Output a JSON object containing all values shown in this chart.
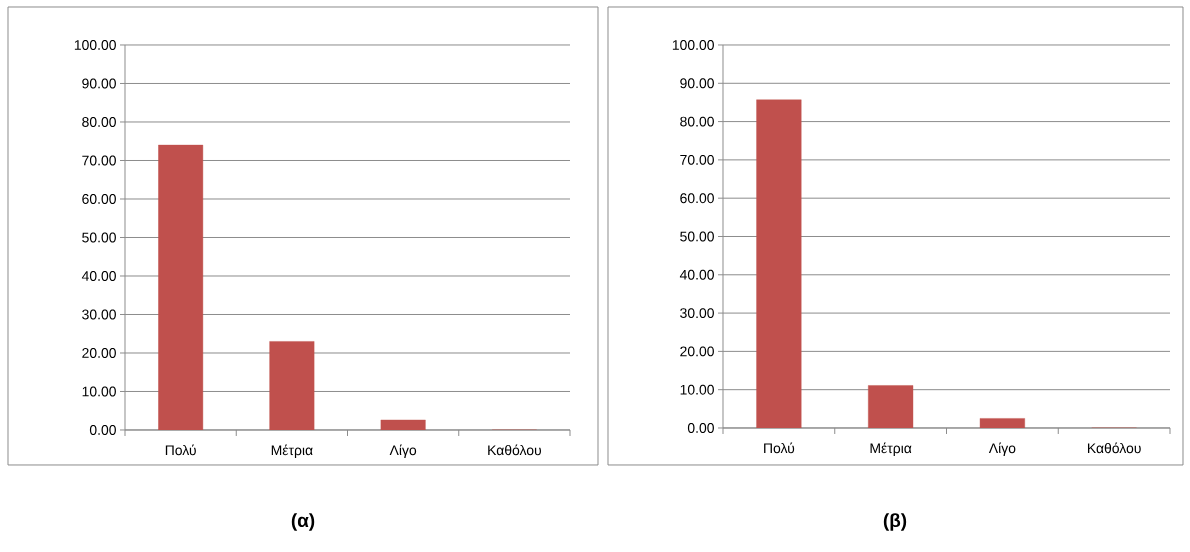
{
  "chart_data": [
    {
      "type": "bar",
      "title": "**(α)**",
      "categories": [
        "Πολύ",
        "Μέτρια",
        "Λίγο",
        "Καθόλου"
      ],
      "values": [
        74.0,
        23.0,
        2.6,
        0
      ],
      "color": "#c0504d",
      "ylim": [
        0,
        100
      ],
      "yticks": [
        {
          "value": 0,
          "label": "0.00"
        },
        {
          "value": 10,
          "label": "10.00"
        },
        {
          "value": 20,
          "label": "20.00"
        },
        {
          "value": 30,
          "label": "30.00"
        },
        {
          "value": 40,
          "label": "40.00"
        },
        {
          "value": 50,
          "label": "50.00"
        },
        {
          "value": 60,
          "label": "60.00"
        },
        {
          "value": 70,
          "label": "70.00"
        },
        {
          "value": 80,
          "label": "80.00"
        },
        {
          "value": 90,
          "label": "90.00"
        },
        {
          "value": 100,
          "label": "100.00"
        }
      ],
      "grid": "y"
    },
    {
      "type": "bar",
      "title": "**(β)**",
      "categories": [
        "Πολύ",
        "Μέτρια",
        "Λίγο",
        "Καθόλου"
      ],
      "values": [
        85.7,
        11.1,
        2.5,
        0
      ],
      "color": "#c0504d",
      "ylim": [
        0,
        100
      ],
      "yticks": [
        {
          "value": 0,
          "label": "0.00"
        },
        {
          "value": 10,
          "label": "10.00"
        },
        {
          "value": 20,
          "label": "20.00"
        },
        {
          "value": 30,
          "label": "30.00"
        },
        {
          "value": 40,
          "label": "40.00"
        },
        {
          "value": 50,
          "label": "50.00"
        },
        {
          "value": 60,
          "label": "60.00"
        },
        {
          "value": 70,
          "label": "70.00"
        },
        {
          "value": 80,
          "label": "80.00"
        },
        {
          "value": 90,
          "label": "90.00"
        },
        {
          "value": 100,
          "label": "100.00"
        }
      ],
      "grid": "y"
    }
  ]
}
